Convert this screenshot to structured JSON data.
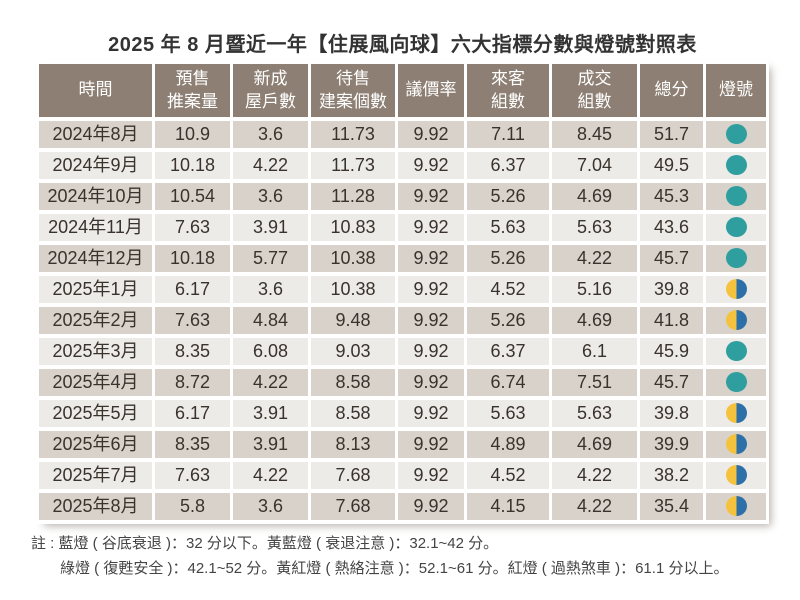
{
  "page_title": "2025 年 8 月暨近一年【住展風向球】六大指標分數與燈號對照表",
  "chart_data": {
    "type": "table",
    "title": "2025 年 8 月暨近一年【住展風向球】六大指標分數與燈號對照表",
    "columns": [
      {
        "id": "time",
        "label": "時間"
      },
      {
        "id": "presale-volume",
        "label": "預售\n推案量"
      },
      {
        "id": "new-house-units",
        "label": "新成\n屋戶數"
      },
      {
        "id": "projects-for-sale",
        "label": "待售\n建案個數"
      },
      {
        "id": "negotiation-rate",
        "label": "議價率"
      },
      {
        "id": "visitor-groups",
        "label": "來客\n組數"
      },
      {
        "id": "deal-groups",
        "label": "成交\n組數"
      },
      {
        "id": "total-score",
        "label": "總分"
      },
      {
        "id": "light-signal",
        "label": "燈號"
      }
    ],
    "rows": [
      {
        "time": "2024年8月",
        "values": [
          "10.9",
          "3.6",
          "11.73",
          "9.92",
          "7.11",
          "8.45",
          "51.7"
        ],
        "light": "green"
      },
      {
        "time": "2024年9月",
        "values": [
          "10.18",
          "4.22",
          "11.73",
          "9.92",
          "6.37",
          "7.04",
          "49.5"
        ],
        "light": "green"
      },
      {
        "time": "2024年10月",
        "values": [
          "10.54",
          "3.6",
          "11.28",
          "9.92",
          "5.26",
          "4.69",
          "45.3"
        ],
        "light": "green"
      },
      {
        "time": "2024年11月",
        "values": [
          "7.63",
          "3.91",
          "10.83",
          "9.92",
          "5.63",
          "5.63",
          "43.6"
        ],
        "light": "green"
      },
      {
        "time": "2024年12月",
        "values": [
          "10.18",
          "5.77",
          "10.38",
          "9.92",
          "5.26",
          "4.22",
          "45.7"
        ],
        "light": "green"
      },
      {
        "time": "2025年1月",
        "values": [
          "6.17",
          "3.6",
          "10.38",
          "9.92",
          "4.52",
          "5.16",
          "39.8"
        ],
        "light": "yellow-blue"
      },
      {
        "time": "2025年2月",
        "values": [
          "7.63",
          "4.84",
          "9.48",
          "9.92",
          "5.26",
          "4.69",
          "41.8"
        ],
        "light": "yellow-blue"
      },
      {
        "time": "2025年3月",
        "values": [
          "8.35",
          "6.08",
          "9.03",
          "9.92",
          "6.37",
          "6.1",
          "45.9"
        ],
        "light": "green"
      },
      {
        "time": "2025年4月",
        "values": [
          "8.72",
          "4.22",
          "8.58",
          "9.92",
          "6.74",
          "7.51",
          "45.7"
        ],
        "light": "green"
      },
      {
        "time": "2025年5月",
        "values": [
          "6.17",
          "3.91",
          "8.58",
          "9.92",
          "5.63",
          "5.63",
          "39.8"
        ],
        "light": "yellow-blue"
      },
      {
        "time": "2025年6月",
        "values": [
          "8.35",
          "3.91",
          "8.13",
          "9.92",
          "4.89",
          "4.69",
          "39.9"
        ],
        "light": "yellow-blue"
      },
      {
        "time": "2025年7月",
        "values": [
          "7.63",
          "4.22",
          "7.68",
          "9.92",
          "4.52",
          "4.22",
          "38.2"
        ],
        "light": "yellow-blue"
      },
      {
        "time": "2025年8月",
        "values": [
          "5.8",
          "3.6",
          "7.68",
          "9.92",
          "4.15",
          "4.22",
          "35.4"
        ],
        "light": "yellow-blue"
      }
    ],
    "light_legend": {
      "green": "綠燈 ( 復甦安全 )：42.1~52 分",
      "yellow-blue": "黃藍燈 ( 衰退注意 )：32.1~42 分"
    }
  },
  "notes": {
    "prefix": "註 :",
    "line1": "藍燈 ( 谷底衰退 )：32 分以下。黃藍燈 ( 衰退注意 )：32.1~42 分。",
    "line2": "綠燈 ( 復甦安全 )：42.1~52 分。黃紅燈 ( 熱絡注意 )：52.1~61 分。紅燈 ( 過熱煞車 )：61.1 分以上。"
  },
  "colors": {
    "header_bg": "#8d7f73",
    "header_text": "#ffffff",
    "row_dark": "#d8d2cb",
    "row_light": "#edebe7",
    "cell_text": "#3a322c",
    "title_text": "#333333",
    "note_text": "#444444",
    "light_green": "#2f9e9e",
    "light_yellow": "#f4c23d",
    "light_blue": "#2d6fa9"
  }
}
